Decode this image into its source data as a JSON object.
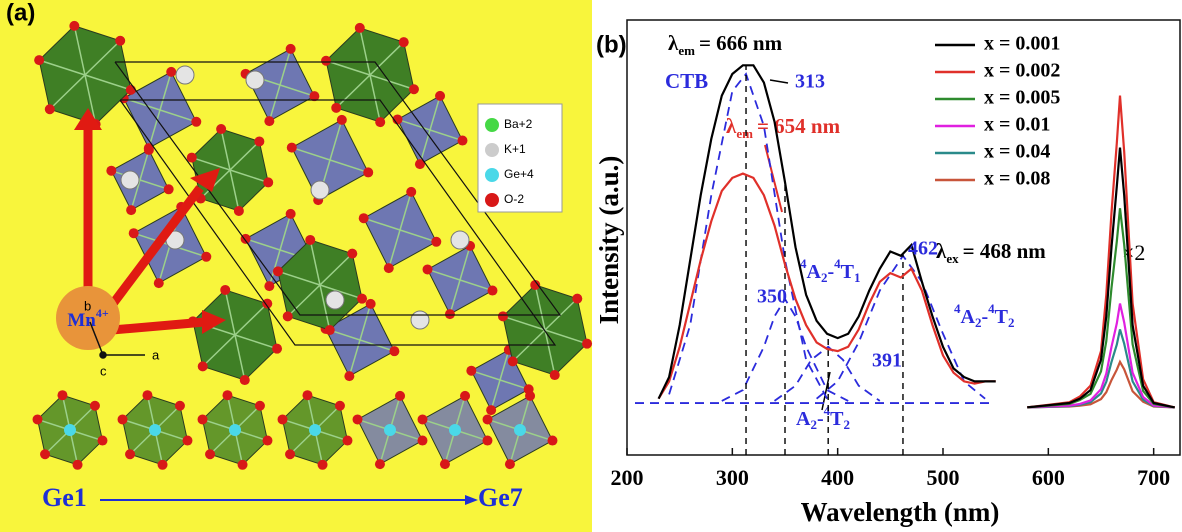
{
  "panel_a": {
    "label": "(a)",
    "legend": [
      "Ba+2",
      "K+1",
      "Ge+4",
      "O-2"
    ],
    "mn": [
      "Mn",
      "4+"
    ],
    "axes": [
      "b",
      "a",
      "c"
    ],
    "ge_start": "Ge1",
    "ge_end": "Ge7"
  },
  "chart_data": {
    "type": "line",
    "panel_label": "(b)",
    "x_label": "Wavelength (nm)",
    "y_label": "Intensity (a.u.)",
    "xlim": [
      200,
      725
    ],
    "ylim": [
      0,
      100
    ],
    "xticks": [
      200,
      300,
      400,
      500,
      600,
      700
    ],
    "x": [
      230,
      240,
      250,
      260,
      270,
      280,
      290,
      300,
      310,
      320,
      330,
      340,
      350,
      360,
      370,
      380,
      390,
      400,
      410,
      420,
      430,
      440,
      450,
      460,
      470,
      480,
      490,
      500,
      510,
      520,
      530,
      540,
      550,
      560,
      580,
      600,
      620,
      630,
      640,
      650,
      655,
      660,
      665,
      668,
      672,
      680,
      690,
      700,
      720
    ],
    "series": [
      {
        "name": "x = 0.001",
        "color": "#000000",
        "values": [
          13,
          18,
          30,
          45,
          60,
          73,
          83,
          88,
          90,
          90,
          86,
          77,
          63,
          48,
          37,
          31,
          28,
          27,
          28,
          32,
          38,
          43,
          47,
          46,
          48.5,
          40,
          32,
          25,
          20,
          18,
          17,
          17,
          17,
          null,
          11,
          11.5,
          12,
          13,
          15,
          22,
          32,
          48,
          62,
          71,
          60,
          30,
          16,
          12,
          11
        ]
      },
      {
        "name": "x = 0.002",
        "color": "#e0302a",
        "values": [
          13,
          17,
          25,
          35,
          45,
          54,
          61,
          64,
          65,
          64,
          60,
          53,
          44,
          36,
          30,
          26,
          24.5,
          24,
          25,
          29,
          35,
          40,
          42,
          41,
          43,
          38,
          30,
          23,
          19,
          17,
          16.5,
          17,
          17,
          null,
          11,
          11.6,
          12.2,
          13.5,
          16,
          24,
          37,
          56,
          72,
          83,
          70,
          35,
          17.5,
          12.2,
          11
        ]
      },
      {
        "name": "x = 0.005",
        "color": "#2e8b2e",
        "values": [
          null,
          null,
          null,
          null,
          null,
          null,
          null,
          null,
          null,
          null,
          null,
          null,
          null,
          null,
          null,
          null,
          null,
          null,
          null,
          null,
          null,
          null,
          null,
          null,
          null,
          null,
          null,
          null,
          null,
          null,
          null,
          null,
          null,
          null,
          11,
          11.4,
          11.8,
          12.7,
          14.1,
          19.3,
          26.3,
          38.6,
          49.3,
          57,
          48.6,
          25.6,
          14.8,
          11.8,
          11
        ]
      },
      {
        "name": "x = 0.01",
        "color": "#e020e0",
        "values": [
          null,
          null,
          null,
          null,
          null,
          null,
          null,
          null,
          null,
          null,
          null,
          null,
          null,
          null,
          null,
          null,
          null,
          null,
          null,
          null,
          null,
          null,
          null,
          null,
          null,
          null,
          null,
          null,
          null,
          null,
          null,
          null,
          null,
          null,
          11,
          11.2,
          11.4,
          11.8,
          12.6,
          15.2,
          18.8,
          25,
          30.4,
          35,
          30.6,
          19,
          13.4,
          11.4,
          11
        ]
      },
      {
        "name": "x = 0.04",
        "color": "#2a8a8a",
        "values": [
          null,
          null,
          null,
          null,
          null,
          null,
          null,
          null,
          null,
          null,
          null,
          null,
          null,
          null,
          null,
          null,
          null,
          null,
          null,
          null,
          null,
          null,
          null,
          null,
          null,
          null,
          null,
          null,
          null,
          null,
          null,
          null,
          null,
          null,
          11,
          11.1,
          11.3,
          11.6,
          12.2,
          14.2,
          16.9,
          21.5,
          25.5,
          29,
          25.7,
          17,
          12.8,
          11.3,
          11
        ]
      },
      {
        "name": "x = 0.08",
        "color": "#c8553a",
        "values": [
          null,
          null,
          null,
          null,
          null,
          null,
          null,
          null,
          null,
          null,
          null,
          null,
          null,
          null,
          null,
          null,
          null,
          null,
          null,
          null,
          null,
          null,
          null,
          null,
          null,
          null,
          null,
          null,
          null,
          null,
          null,
          null,
          null,
          null,
          11,
          11.1,
          11.2,
          11.4,
          11.7,
          12.9,
          14.5,
          17.3,
          19.7,
          21.5,
          19.8,
          14.7,
          12.3,
          11.2,
          11
        ]
      }
    ],
    "fits": [
      {
        "color": "#2b2bdc",
        "x": [
          240,
          260,
          280,
          300,
          313,
          330,
          350,
          370,
          390
        ],
        "values": [
          14,
          30,
          60,
          84,
          88,
          76,
          45,
          22,
          13
        ]
      },
      {
        "color": "#2b2bdc",
        "x": [
          290,
          310,
          330,
          340,
          350,
          360,
          370,
          390,
          410
        ],
        "values": [
          12.5,
          15,
          25,
          32,
          36,
          32,
          25,
          15,
          12.5
        ]
      },
      {
        "color": "#2b2bdc",
        "x": [
          340,
          360,
          375,
          391,
          405,
          420,
          440
        ],
        "values": [
          12.5,
          16,
          22,
          25,
          22,
          16,
          12.5
        ]
      },
      {
        "color": "#2b2bdc",
        "x": [
          380,
          400,
          420,
          440,
          462,
          480,
          500,
          520,
          540
        ],
        "values": [
          13,
          17,
          26,
          38,
          46,
          40,
          28,
          17,
          13
        ]
      }
    ],
    "peak_labels": [
      313,
      350,
      391,
      462
    ],
    "annotations": {
      "em_black": [
        "λ",
        "em",
        "= 666 nm"
      ],
      "em_red": [
        "λ",
        "em",
        "= 654 nm"
      ],
      "ex": [
        "λ",
        "ex",
        "= 468 nm"
      ],
      "ctb": "CTB",
      "t1": [
        "4",
        "A",
        "2",
        "-",
        "4",
        "T",
        "1"
      ],
      "t2": [
        "4",
        "A",
        "2",
        "-",
        "4",
        "T",
        "2"
      ],
      "t2b": [
        "A",
        "2",
        "-",
        "4",
        "T",
        "2"
      ],
      "times": "×2"
    }
  }
}
